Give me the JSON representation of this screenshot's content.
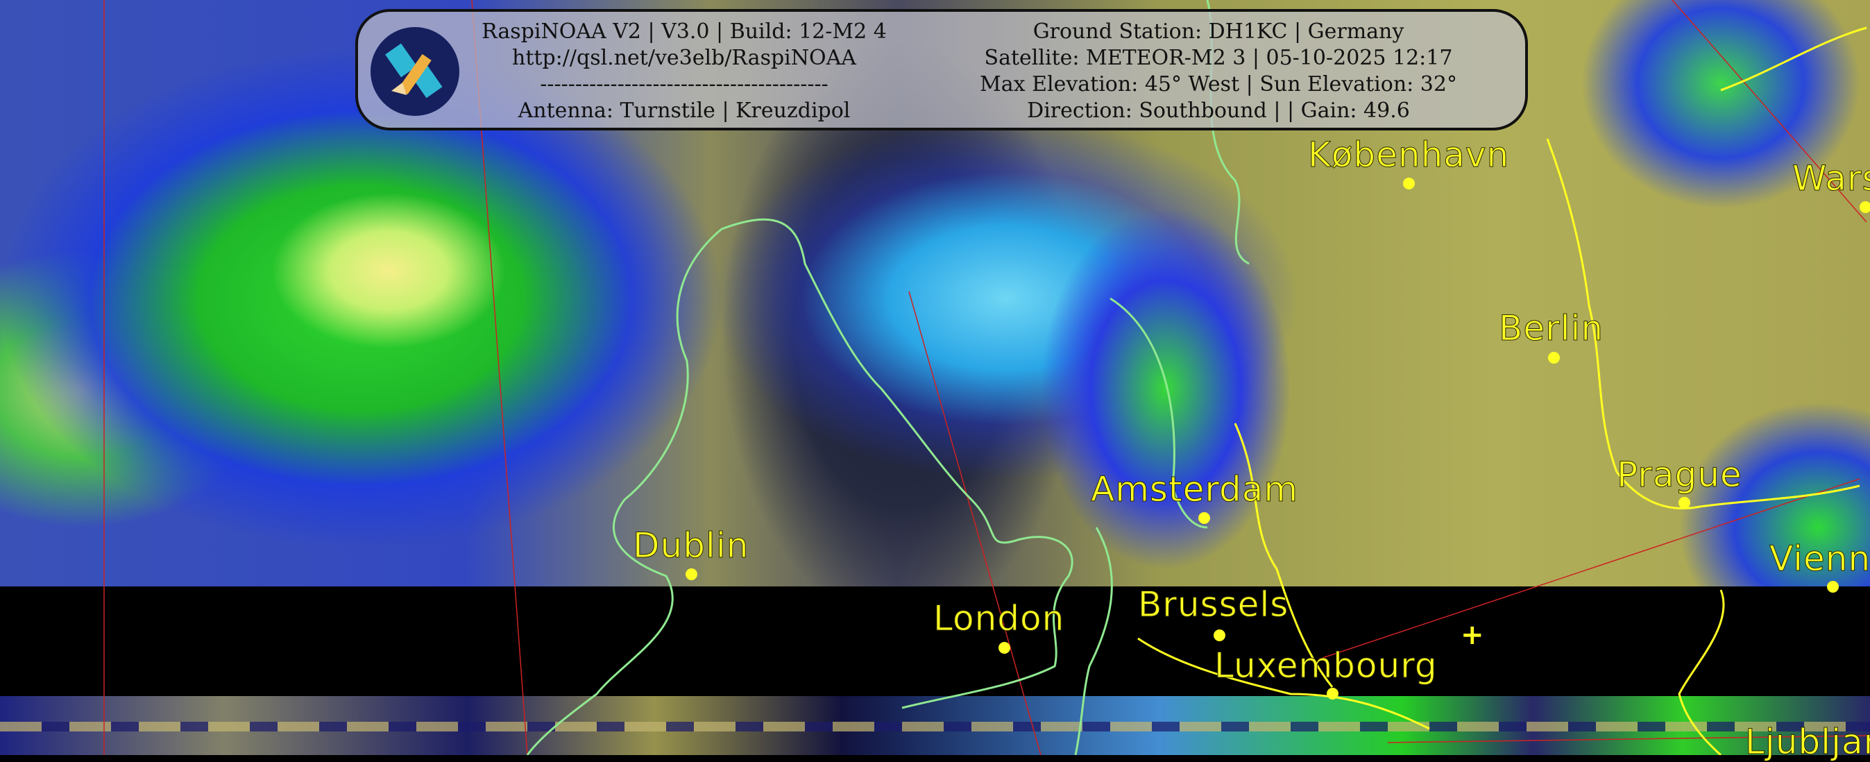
{
  "header": {
    "left_lines": [
      "RaspiNOAA V2 | V3.0 | Build: 12-M2 4",
      "http://qsl.net/ve3elb/RaspiNOAA",
      "-----------------------------------------",
      "Antenna: Turnstile | Kreuzdipol"
    ],
    "right_lines": [
      "Ground Station: DH1KC | Germany",
      "Satellite: METEOR-M2 3 | 05-10-2025 12:17",
      "Max Elevation: 45° West | Sun Elevation: 32°",
      "Direction: Southbound | | Gain: 49.6"
    ],
    "logo_icon": "satellite-icon"
  },
  "map": {
    "label_color": "#ffff22",
    "border_color": "#ffff22",
    "coastline_color": "#90e890",
    "grid_color": "#cc2222",
    "cities": [
      {
        "name": "København"
      },
      {
        "name": "Warsaw"
      },
      {
        "name": "Berlin"
      },
      {
        "name": "Prague"
      },
      {
        "name": "Vienna"
      },
      {
        "name": "Amsterdam"
      },
      {
        "name": "Dublin"
      },
      {
        "name": "London"
      },
      {
        "name": "Brussels"
      },
      {
        "name": "Luxembourg"
      },
      {
        "name": "Ljubljana"
      }
    ]
  }
}
